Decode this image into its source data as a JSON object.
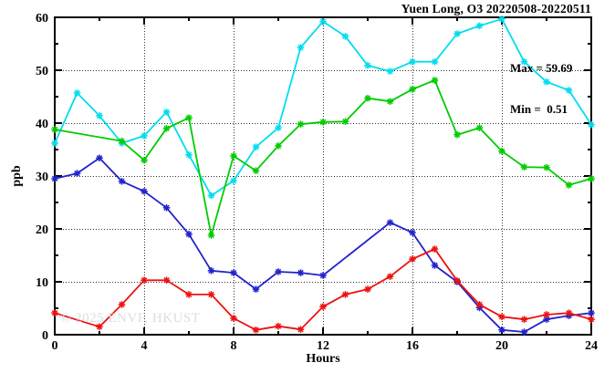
{
  "title": "Yuen Long, O3 20220508-20220511",
  "annotation": {
    "max_label": "Max = 59.69",
    "min_label": "Min =  0.51"
  },
  "watermark": "© 2025 ENVF, HKUST",
  "chart_data": {
    "type": "line",
    "title": "Yuen Long, O3 20220508-20220511",
    "xlabel": "Hours",
    "ylabel": "ppb",
    "xlim": [
      0,
      24
    ],
    "ylim": [
      0,
      60
    ],
    "x_major_ticks": [
      0,
      4,
      8,
      12,
      16,
      20,
      24
    ],
    "x_minor_step": 2,
    "y_major_ticks": [
      0,
      10,
      20,
      30,
      40,
      50,
      60
    ],
    "y_minor_step": 5,
    "grid": true,
    "legend": "none",
    "max": 59.69,
    "min": 0.51,
    "hours": [
      0,
      1,
      2,
      3,
      4,
      5,
      6,
      7,
      8,
      9,
      10,
      11,
      12,
      13,
      14,
      15,
      16,
      17,
      18,
      19,
      20,
      21,
      22,
      23,
      24
    ],
    "series": [
      {
        "name": "cyan",
        "color": "#00DDEE",
        "values": [
          36.2,
          45.7,
          41.4,
          36.2,
          37.6,
          42.1,
          34.0,
          26.3,
          29.1,
          35.5,
          39.1,
          54.3,
          59.2,
          56.4,
          50.9,
          49.8,
          51.6,
          51.6,
          56.9,
          58.4,
          59.69,
          51.6,
          47.8,
          46.2,
          39.7
        ]
      },
      {
        "name": "green",
        "color": "#00CC00",
        "values": [
          38.8,
          null,
          null,
          36.6,
          33.0,
          39.0,
          41.0,
          18.8,
          33.8,
          31.0,
          35.7,
          39.8,
          40.2,
          40.3,
          44.7,
          44.1,
          46.4,
          48.1,
          37.8,
          39.1,
          34.7,
          31.7,
          31.6,
          28.3,
          29.5
        ]
      },
      {
        "name": "blue",
        "color": "#2222CC",
        "values": [
          29.5,
          30.5,
          33.4,
          29.0,
          27.1,
          24.0,
          19.0,
          12.1,
          11.7,
          8.6,
          11.9,
          11.7,
          11.2,
          null,
          null,
          21.2,
          19.3,
          13.1,
          10.0,
          5.1,
          0.9,
          0.51,
          2.9,
          3.6,
          4.1
        ]
      },
      {
        "name": "red",
        "color": "#EE1111",
        "values": [
          4.1,
          null,
          1.5,
          5.7,
          10.3,
          10.3,
          7.6,
          7.6,
          3.1,
          0.9,
          1.6,
          1.0,
          5.3,
          7.6,
          8.6,
          11.0,
          14.3,
          16.2,
          10.2,
          5.7,
          3.4,
          2.9,
          3.8,
          4.1,
          2.9
        ]
      }
    ]
  }
}
